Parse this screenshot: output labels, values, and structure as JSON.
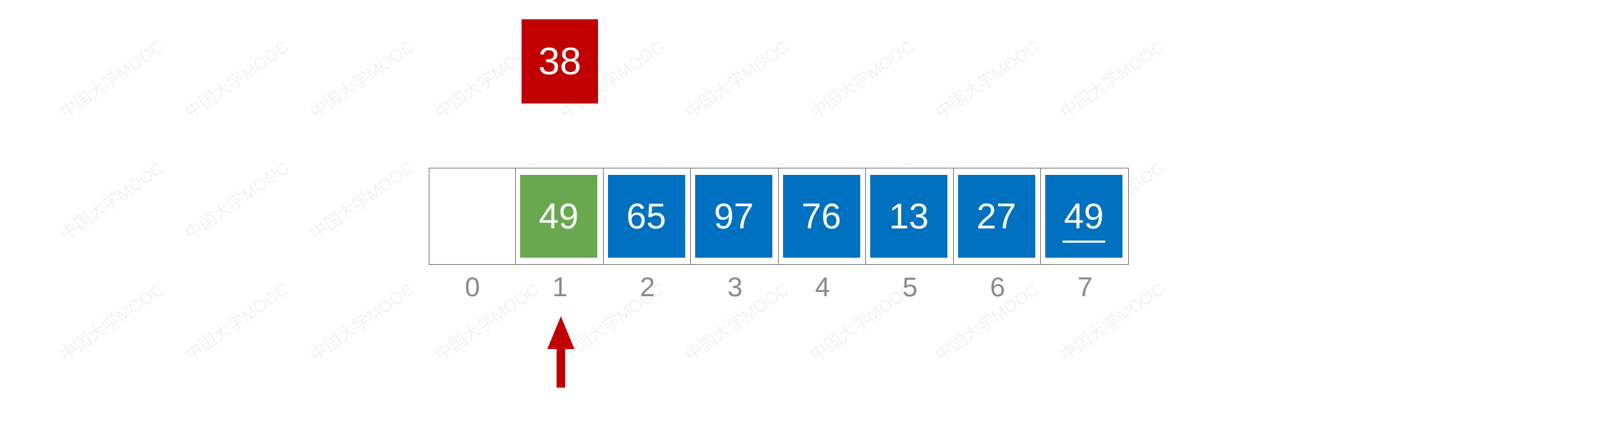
{
  "watermark": "中国大学MOOC",
  "key": {
    "value": "38",
    "color": "#c00000"
  },
  "array": {
    "cells": [
      {
        "value": "",
        "state": "empty"
      },
      {
        "value": "49",
        "state": "active",
        "color": "#6aa84f"
      },
      {
        "value": "65",
        "state": "normal",
        "color": "#0070c0"
      },
      {
        "value": "97",
        "state": "normal",
        "color": "#0070c0"
      },
      {
        "value": "76",
        "state": "normal",
        "color": "#0070c0"
      },
      {
        "value": "13",
        "state": "normal",
        "color": "#0070c0"
      },
      {
        "value": "27",
        "state": "normal",
        "color": "#0070c0"
      },
      {
        "value": "49",
        "state": "normal",
        "color": "#0070c0",
        "underlined": true
      }
    ],
    "indices": [
      "0",
      "1",
      "2",
      "3",
      "4",
      "5",
      "6",
      "7"
    ]
  },
  "pointer": {
    "target_index": 1,
    "color": "#c00000",
    "icon": "up-arrow-icon"
  }
}
